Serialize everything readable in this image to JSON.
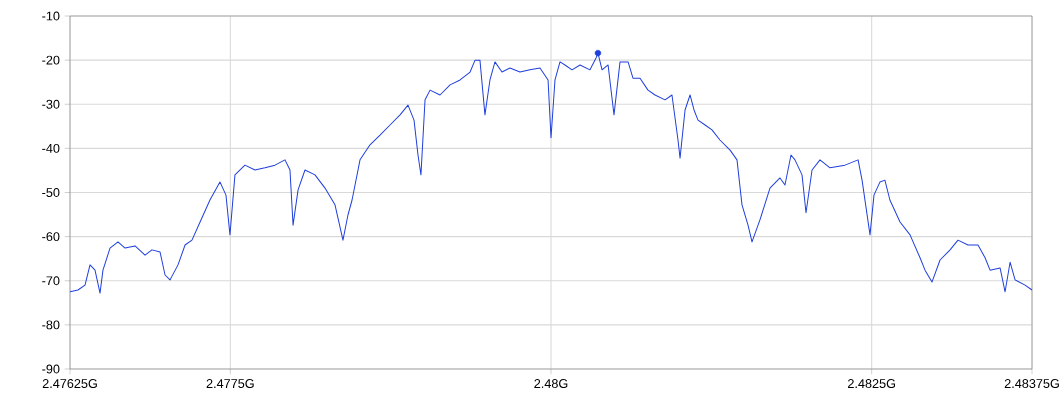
{
  "chart_data": {
    "type": "line",
    "xlim": [
      2.47625,
      2.48375
    ],
    "ylim": [
      -90,
      -10
    ],
    "xticks": [
      {
        "value": 2.47625,
        "label": "2.47625G"
      },
      {
        "value": 2.4775,
        "label": "2.4775G"
      },
      {
        "value": 2.48,
        "label": "2.48G"
      },
      {
        "value": 2.4825,
        "label": "2.4825G"
      },
      {
        "value": 2.48375,
        "label": "2.48375G"
      }
    ],
    "yticks": [
      -90,
      -80,
      -70,
      -60,
      -50,
      -40,
      -30,
      -20,
      -10
    ],
    "grid": true,
    "series": [
      {
        "color": "#1f3fdc",
        "marker": "none",
        "line_style": "solid",
        "x": [
          2.47625,
          2.476312,
          2.476367,
          2.476406,
          2.476445,
          2.476484,
          2.476507,
          2.476562,
          2.476624,
          2.476679,
          2.476757,
          2.476835,
          2.476889,
          2.476952,
          2.476991,
          2.47703,
          2.477092,
          2.477147,
          2.477201,
          2.477264,
          2.477341,
          2.477419,
          2.477466,
          2.477497,
          2.477536,
          2.477614,
          2.477692,
          2.47777,
          2.477848,
          2.477926,
          2.477965,
          2.477989,
          2.478028,
          2.478082,
          2.47816,
          2.478238,
          2.478316,
          2.478378,
          2.478417,
          2.478449,
          2.478511,
          2.478589,
          2.478667,
          2.478745,
          2.478823,
          2.478885,
          2.478932,
          2.478963,
          2.478986,
          2.479018,
          2.479057,
          2.479135,
          2.479213,
          2.479291,
          2.479369,
          2.479408,
          2.479446,
          2.479485,
          2.479524,
          2.479563,
          2.479618,
          2.47968,
          2.479758,
          2.479836,
          2.479914,
          2.479977,
          2.48,
          2.480031,
          2.48007,
          2.480109,
          2.480164,
          2.480226,
          2.480304,
          2.480351,
          2.480366,
          2.480398,
          2.480445,
          2.480491,
          2.480538,
          2.480601,
          2.480639,
          2.480694,
          2.480756,
          2.480811,
          2.480889,
          2.480943,
          2.48099,
          2.481006,
          2.481045,
          2.481084,
          2.481115,
          2.481146,
          2.481201,
          2.481255,
          2.481317,
          2.481396,
          2.48145,
          2.481489,
          2.481536,
          2.481567,
          2.481629,
          2.481707,
          2.481785,
          2.481824,
          2.481871,
          2.481902,
          2.481957,
          2.481988,
          2.482035,
          2.482097,
          2.482175,
          2.482292,
          2.482394,
          2.482425,
          2.482487,
          2.482518,
          2.482565,
          2.482603,
          2.482642,
          2.482721,
          2.482799,
          2.482877,
          2.482916,
          2.48297,
          2.483033,
          2.483111,
          2.483173,
          2.483251,
          2.483329,
          2.483384,
          2.483423,
          2.483501,
          2.48354,
          2.483579,
          2.483618,
          2.483696,
          2.48375
        ],
        "values": [
          -72.5,
          -72.1,
          -71.0,
          -66.4,
          -67.6,
          -72.8,
          -67.6,
          -62.6,
          -61.2,
          -62.6,
          -62.1,
          -64.2,
          -63.0,
          -63.5,
          -68.7,
          -69.8,
          -66.4,
          -61.9,
          -60.8,
          -56.7,
          -51.7,
          -47.6,
          -50.6,
          -59.6,
          -46.0,
          -43.8,
          -44.9,
          -44.4,
          -43.8,
          -42.6,
          -44.9,
          -57.4,
          -49.4,
          -44.9,
          -46.0,
          -49.0,
          -52.8,
          -60.8,
          -55.1,
          -51.7,
          -42.6,
          -39.2,
          -37.0,
          -34.7,
          -32.4,
          -30.2,
          -33.6,
          -41.5,
          -46.0,
          -29.0,
          -26.8,
          -27.9,
          -25.6,
          -24.5,
          -22.7,
          -20.0,
          -20.0,
          -32.4,
          -24.5,
          -20.4,
          -22.7,
          -21.8,
          -22.7,
          -22.2,
          -21.8,
          -24.5,
          -37.6,
          -24.5,
          -20.4,
          -21.1,
          -22.2,
          -21.1,
          -22.2,
          -19.5,
          -18.4,
          -22.2,
          -21.1,
          -32.4,
          -20.4,
          -20.4,
          -24.1,
          -24.1,
          -26.8,
          -27.9,
          -29.0,
          -27.9,
          -38.1,
          -42.2,
          -31.3,
          -27.9,
          -31.3,
          -33.6,
          -34.7,
          -35.8,
          -38.1,
          -40.4,
          -42.6,
          -52.8,
          -57.4,
          -61.2,
          -56.2,
          -49.0,
          -46.7,
          -48.3,
          -41.5,
          -42.6,
          -46.0,
          -54.6,
          -44.9,
          -42.6,
          -44.4,
          -43.8,
          -42.6,
          -47.2,
          -59.6,
          -50.6,
          -47.6,
          -47.2,
          -51.7,
          -56.7,
          -59.6,
          -64.8,
          -67.6,
          -70.3,
          -65.3,
          -63.0,
          -60.8,
          -61.9,
          -61.9,
          -64.8,
          -67.6,
          -67.1,
          -72.5,
          -65.8,
          -69.8,
          -71.0,
          -72.1
        ]
      },
      {
        "type": "scatter",
        "color": "#1f3fdc",
        "marker": "circle",
        "x": [
          2.480366
        ],
        "values": [
          -18.4
        ]
      }
    ]
  }
}
